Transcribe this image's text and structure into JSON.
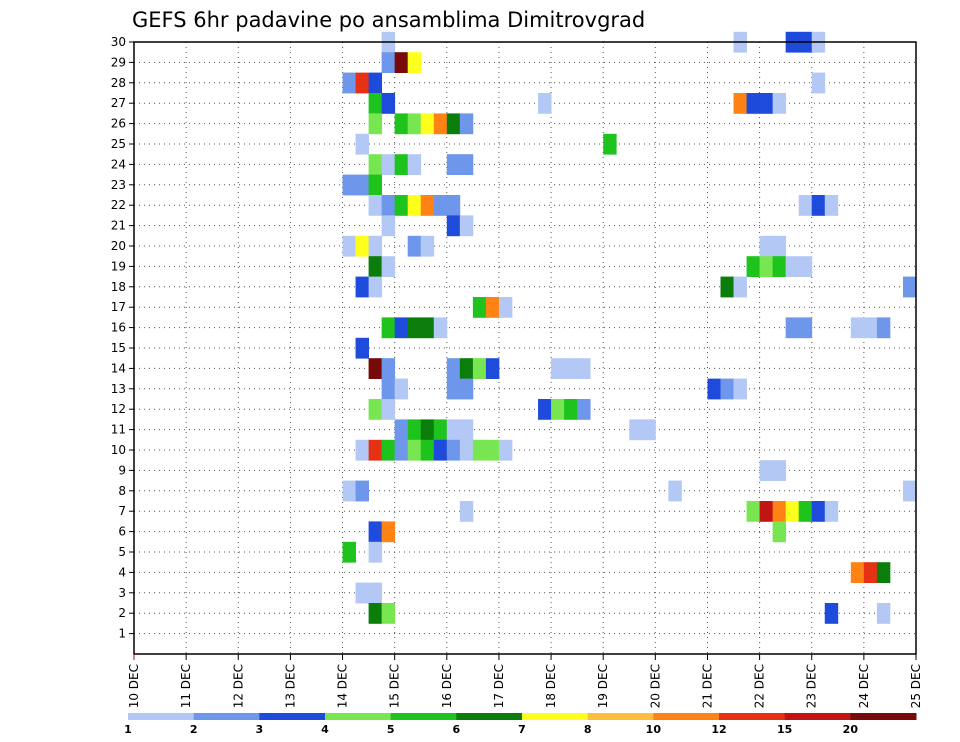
{
  "title": "GEFS 6hr padavine po ansamblima Dimitrovgrad",
  "chart_data": {
    "type": "heatmap",
    "title": "GEFS 6hr padavine po ansamblima Dimitrovgrad",
    "xlabel": "",
    "ylabel": "",
    "x_tick_labels": [
      "10 DEC",
      "11 DEC",
      "12 DEC",
      "13 DEC",
      "14 DEC",
      "15 DEC",
      "16 DEC",
      "17 DEC",
      "18 DEC",
      "19 DEC",
      "20 DEC",
      "21 DEC",
      "22 DEC",
      "23 DEC",
      "24 DEC",
      "25 DEC"
    ],
    "xlim_days": [
      10,
      25
    ],
    "time_step_hours": 6,
    "y_ticks": [
      1,
      2,
      3,
      4,
      5,
      6,
      7,
      8,
      9,
      10,
      11,
      12,
      13,
      14,
      15,
      16,
      17,
      18,
      19,
      20,
      21,
      22,
      23,
      24,
      25,
      26,
      27,
      28,
      29,
      30
    ],
    "ylim": [
      0,
      30
    ],
    "grid": true,
    "colorbar": {
      "placement": "bottom",
      "levels": [
        "1",
        "2",
        "3",
        "4",
        "5",
        "6",
        "7",
        "8",
        "10",
        "12",
        "15",
        "20"
      ],
      "colors": [
        "#b4c8f5",
        "#6e96eb",
        "#1e4bdc",
        "#78e650",
        "#1ec31e",
        "#0a7d0a",
        "#ffff1e",
        "#ffbe3c",
        "#ff8214",
        "#e63214",
        "#c31414",
        "#780a0a"
      ]
    },
    "cells_legend": "each cell = [ensemble member, day of December at start of 6h step, color class index 0-11 into colorbar.colors]",
    "cells": [
      [
        30,
        14.75,
        0
      ],
      [
        30,
        21.5,
        0
      ],
      [
        30,
        22.5,
        2
      ],
      [
        30,
        22.75,
        2
      ],
      [
        30,
        23.0,
        0
      ],
      [
        29,
        14.75,
        1
      ],
      [
        29,
        15.0,
        11
      ],
      [
        29,
        15.25,
        6
      ],
      [
        28,
        14.0,
        1
      ],
      [
        28,
        14.25,
        9
      ],
      [
        28,
        14.5,
        2
      ],
      [
        28,
        23.0,
        0
      ],
      [
        27,
        14.5,
        4
      ],
      [
        27,
        14.75,
        2
      ],
      [
        27,
        17.75,
        0
      ],
      [
        27,
        21.5,
        8
      ],
      [
        27,
        21.75,
        2
      ],
      [
        27,
        22.0,
        2
      ],
      [
        27,
        22.25,
        0
      ],
      [
        26,
        14.5,
        3
      ],
      [
        26,
        15.0,
        4
      ],
      [
        26,
        15.25,
        3
      ],
      [
        26,
        15.5,
        6
      ],
      [
        26,
        15.75,
        8
      ],
      [
        26,
        16.0,
        5
      ],
      [
        26,
        16.25,
        1
      ],
      [
        25,
        14.25,
        0
      ],
      [
        25,
        19.0,
        4
      ],
      [
        24,
        14.5,
        3
      ],
      [
        24,
        14.75,
        0
      ],
      [
        24,
        15.0,
        4
      ],
      [
        24,
        15.25,
        0
      ],
      [
        24,
        16.0,
        1
      ],
      [
        24,
        16.25,
        1
      ],
      [
        23,
        14.0,
        1
      ],
      [
        23,
        14.25,
        1
      ],
      [
        23,
        14.5,
        4
      ],
      [
        22,
        14.5,
        0
      ],
      [
        22,
        14.75,
        1
      ],
      [
        22,
        15.0,
        4
      ],
      [
        22,
        15.25,
        6
      ],
      [
        22,
        15.5,
        8
      ],
      [
        22,
        15.75,
        1
      ],
      [
        22,
        16.0,
        1
      ],
      [
        22,
        22.75,
        0
      ],
      [
        22,
        23.0,
        2
      ],
      [
        22,
        23.25,
        0
      ],
      [
        21,
        14.75,
        0
      ],
      [
        21,
        16.0,
        2
      ],
      [
        21,
        16.25,
        0
      ],
      [
        20,
        14.0,
        0
      ],
      [
        20,
        14.25,
        6
      ],
      [
        20,
        14.5,
        0
      ],
      [
        20,
        15.25,
        1
      ],
      [
        20,
        15.5,
        0
      ],
      [
        20,
        22.0,
        0
      ],
      [
        20,
        22.25,
        0
      ],
      [
        19,
        14.5,
        5
      ],
      [
        19,
        14.75,
        0
      ],
      [
        19,
        21.75,
        4
      ],
      [
        19,
        22.0,
        3
      ],
      [
        19,
        22.25,
        4
      ],
      [
        19,
        22.5,
        0
      ],
      [
        19,
        22.75,
        0
      ],
      [
        18,
        14.25,
        2
      ],
      [
        18,
        14.5,
        0
      ],
      [
        18,
        21.25,
        5
      ],
      [
        18,
        21.5,
        0
      ],
      [
        18,
        24.75,
        1
      ],
      [
        17,
        16.5,
        4
      ],
      [
        17,
        16.75,
        8
      ],
      [
        17,
        17.0,
        0
      ],
      [
        16,
        14.75,
        4
      ],
      [
        16,
        15.0,
        2
      ],
      [
        16,
        15.25,
        5
      ],
      [
        16,
        15.5,
        5
      ],
      [
        16,
        15.75,
        0
      ],
      [
        16,
        22.5,
        1
      ],
      [
        16,
        22.75,
        1
      ],
      [
        16,
        23.75,
        0
      ],
      [
        16,
        24.0,
        0
      ],
      [
        16,
        24.25,
        1
      ],
      [
        15,
        14.25,
        2
      ],
      [
        14,
        14.5,
        11
      ],
      [
        14,
        14.75,
        1
      ],
      [
        14,
        16.0,
        1
      ],
      [
        14,
        16.25,
        5
      ],
      [
        14,
        16.5,
        3
      ],
      [
        14,
        16.75,
        2
      ],
      [
        14,
        18.0,
        0
      ],
      [
        14,
        18.25,
        0
      ],
      [
        14,
        18.5,
        0
      ],
      [
        13,
        14.75,
        1
      ],
      [
        13,
        15.0,
        0
      ],
      [
        13,
        16.0,
        1
      ],
      [
        13,
        16.25,
        1
      ],
      [
        13,
        21.0,
        2
      ],
      [
        13,
        21.25,
        1
      ],
      [
        13,
        21.5,
        0
      ],
      [
        12,
        14.5,
        3
      ],
      [
        12,
        14.75,
        0
      ],
      [
        12,
        17.75,
        2
      ],
      [
        12,
        18.0,
        3
      ],
      [
        12,
        18.25,
        4
      ],
      [
        12,
        18.5,
        1
      ],
      [
        11,
        15.0,
        1
      ],
      [
        11,
        15.25,
        4
      ],
      [
        11,
        15.5,
        5
      ],
      [
        11,
        15.75,
        4
      ],
      [
        11,
        16.0,
        0
      ],
      [
        11,
        16.25,
        0
      ],
      [
        11,
        19.5,
        0
      ],
      [
        11,
        19.75,
        0
      ],
      [
        10,
        14.25,
        0
      ],
      [
        10,
        14.5,
        9
      ],
      [
        10,
        14.75,
        4
      ],
      [
        10,
        15.0,
        1
      ],
      [
        10,
        15.25,
        3
      ],
      [
        10,
        15.5,
        4
      ],
      [
        10,
        15.75,
        2
      ],
      [
        10,
        16.0,
        1
      ],
      [
        10,
        16.25,
        0
      ],
      [
        10,
        16.5,
        3
      ],
      [
        10,
        16.75,
        3
      ],
      [
        10,
        17.0,
        0
      ],
      [
        9,
        22.0,
        0
      ],
      [
        9,
        22.25,
        0
      ],
      [
        8,
        14.0,
        0
      ],
      [
        8,
        14.25,
        1
      ],
      [
        8,
        20.25,
        0
      ],
      [
        8,
        24.75,
        0
      ],
      [
        7,
        16.25,
        0
      ],
      [
        7,
        21.75,
        3
      ],
      [
        7,
        22.0,
        10
      ],
      [
        7,
        22.25,
        8
      ],
      [
        7,
        22.5,
        6
      ],
      [
        7,
        22.75,
        4
      ],
      [
        7,
        23.0,
        2
      ],
      [
        7,
        23.25,
        0
      ],
      [
        6,
        14.5,
        2
      ],
      [
        6,
        14.75,
        8
      ],
      [
        6,
        22.25,
        3
      ],
      [
        5,
        14.0,
        4
      ],
      [
        5,
        14.5,
        0
      ],
      [
        4,
        23.75,
        8
      ],
      [
        4,
        24.0,
        9
      ],
      [
        4,
        24.25,
        5
      ],
      [
        3,
        14.25,
        0
      ],
      [
        3,
        14.5,
        0
      ],
      [
        2,
        14.5,
        5
      ],
      [
        2,
        14.75,
        3
      ],
      [
        2,
        23.25,
        2
      ],
      [
        2,
        24.25,
        0
      ]
    ]
  }
}
